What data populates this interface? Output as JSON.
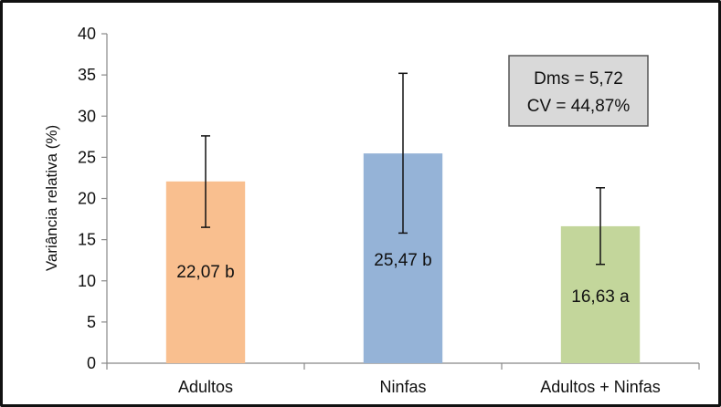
{
  "chart_data": {
    "type": "bar",
    "ylabel": "Variância relativa  (%)",
    "ylim": [
      0,
      40
    ],
    "yticks": [
      "0",
      "5",
      "10",
      "15",
      "20",
      "25",
      "30",
      "35",
      "40"
    ],
    "categories": [
      "Adultos",
      "Ninfas",
      "Adultos + Ninfas"
    ],
    "values": [
      22.07,
      25.47,
      16.63
    ],
    "error_low": [
      16.5,
      15.8,
      12.0
    ],
    "error_high": [
      27.6,
      35.2,
      21.3
    ],
    "data_labels": [
      "22,07 b",
      "25,47 b",
      "16,63 a"
    ],
    "colors": [
      "#f9bf8f",
      "#95b3d7",
      "#c3d69b"
    ],
    "stats_box": {
      "line1": "Dms = 5,72",
      "line2": "CV = 44,87%",
      "fill": "#d9d9d9"
    },
    "grid": false,
    "legend": "none"
  }
}
